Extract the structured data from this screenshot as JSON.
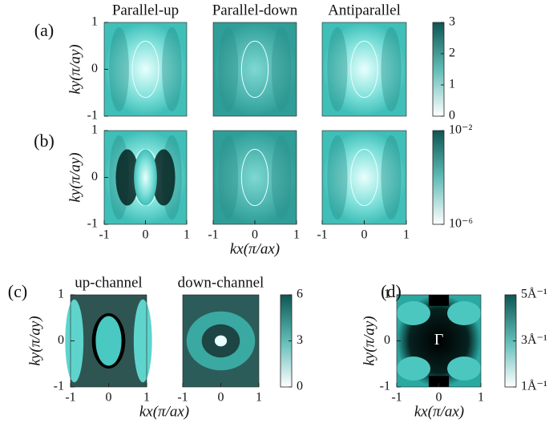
{
  "chart_data": [
    {
      "type": "heatmap",
      "panel_label": "(a)",
      "title": "Parallel-up",
      "ylabel": "ky(π/ay)",
      "xlim": [
        -1,
        1
      ],
      "ylim": [
        -1,
        1
      ],
      "yticks": [
        -1,
        0,
        1
      ]
    },
    {
      "type": "heatmap",
      "title": "Parallel-down",
      "xlim": [
        -1,
        1
      ],
      "ylim": [
        -1,
        1
      ]
    },
    {
      "type": "heatmap",
      "title": "Antiparallel",
      "xlim": [
        -1,
        1
      ],
      "ylim": [
        -1,
        1
      ],
      "colorbar": {
        "lim": [
          0,
          3
        ],
        "ticks": [
          0,
          1,
          2,
          3
        ]
      }
    },
    {
      "type": "heatmap",
      "panel_label": "(b)",
      "ylabel": "ky(π/ay)",
      "xlim": [
        -1,
        1
      ],
      "ylim": [
        -1,
        1
      ],
      "xticks": [
        -1,
        0,
        1
      ],
      "yticks": [
        -1,
        0,
        1
      ]
    },
    {
      "type": "heatmap",
      "xlabel": "kx(π/ax)",
      "xlim": [
        -1,
        1
      ],
      "ylim": [
        -1,
        1
      ],
      "xticks": [
        -1,
        0,
        1
      ]
    },
    {
      "type": "heatmap",
      "xlim": [
        -1,
        1
      ],
      "ylim": [
        -1,
        1
      ],
      "xticks": [
        -1,
        0,
        1
      ],
      "colorbar": {
        "lim": [
          1e-06,
          0.01
        ],
        "log": true,
        "ticks": [
          {
            "value": 1e-06,
            "label": "10⁻⁶"
          },
          {
            "value": 0.01,
            "label": "10⁻²"
          }
        ]
      }
    },
    {
      "type": "heatmap",
      "panel_label": "(c)",
      "title": "up-channel",
      "ylabel": "ky(π/ay)",
      "xlabel": "kx(π/ax)",
      "xlim": [
        -1,
        1
      ],
      "ylim": [
        -1,
        1
      ],
      "xticks": [
        -1,
        0,
        1
      ],
      "yticks": [
        -1,
        0,
        1
      ]
    },
    {
      "type": "heatmap",
      "title": "down-channel",
      "xlim": [
        -1,
        1
      ],
      "ylim": [
        -1,
        1
      ],
      "xticks": [
        -1,
        0,
        1
      ],
      "colorbar": {
        "lim": [
          0,
          6
        ],
        "ticks": [
          0,
          3,
          6
        ]
      }
    },
    {
      "type": "heatmap",
      "panel_label": "(d)",
      "annotation": "Γ",
      "ylabel": "ky(π/ay)",
      "xlabel": "kx(π/ax)",
      "xlim": [
        -1,
        1
      ],
      "ylim": [
        -1,
        1
      ],
      "xticks": [
        -1,
        0,
        1
      ],
      "yticks": [
        -1,
        0,
        1
      ],
      "colorbar": {
        "lim": [
          1,
          5
        ],
        "ticks": [
          {
            "value": 1,
            "label": "1Å⁻¹"
          },
          {
            "value": 3,
            "label": "3Å⁻¹"
          },
          {
            "value": 5,
            "label": "5Å⁻¹"
          }
        ]
      }
    }
  ]
}
